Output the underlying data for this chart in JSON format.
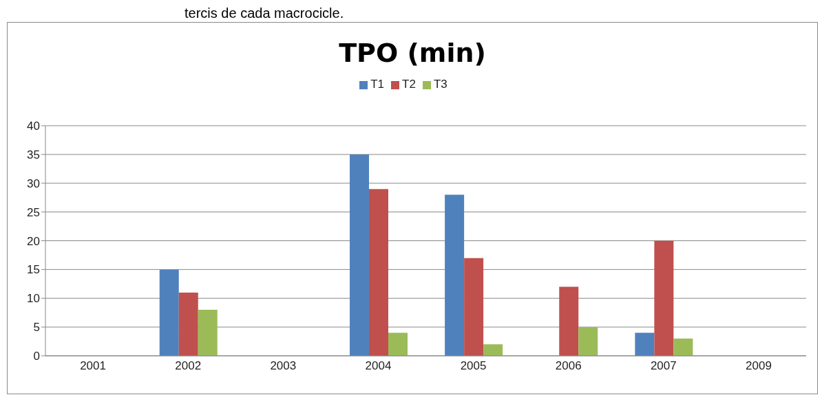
{
  "chart_data": {
    "type": "bar",
    "title": "TPO (min)",
    "annotations": [
      "tercis de cada macrocicle."
    ],
    "categories": [
      "2001",
      "2002",
      "2003",
      "2004",
      "2005",
      "2006",
      "2007",
      "2009"
    ],
    "series": [
      {
        "name": "T1",
        "color": "#4f81bd",
        "values": [
          null,
          15,
          null,
          35,
          28,
          null,
          4,
          null
        ]
      },
      {
        "name": "T2",
        "color": "#c0504d",
        "values": [
          null,
          11,
          null,
          29,
          17,
          12,
          20,
          null
        ]
      },
      {
        "name": "T3",
        "color": "#9bbb59",
        "values": [
          null,
          8,
          null,
          4,
          2,
          5,
          3,
          null
        ]
      }
    ],
    "ylim": [
      0,
      40
    ],
    "yticks": [
      0,
      5,
      10,
      15,
      20,
      25,
      30,
      35,
      40
    ],
    "grid": "y",
    "legend": "top"
  }
}
